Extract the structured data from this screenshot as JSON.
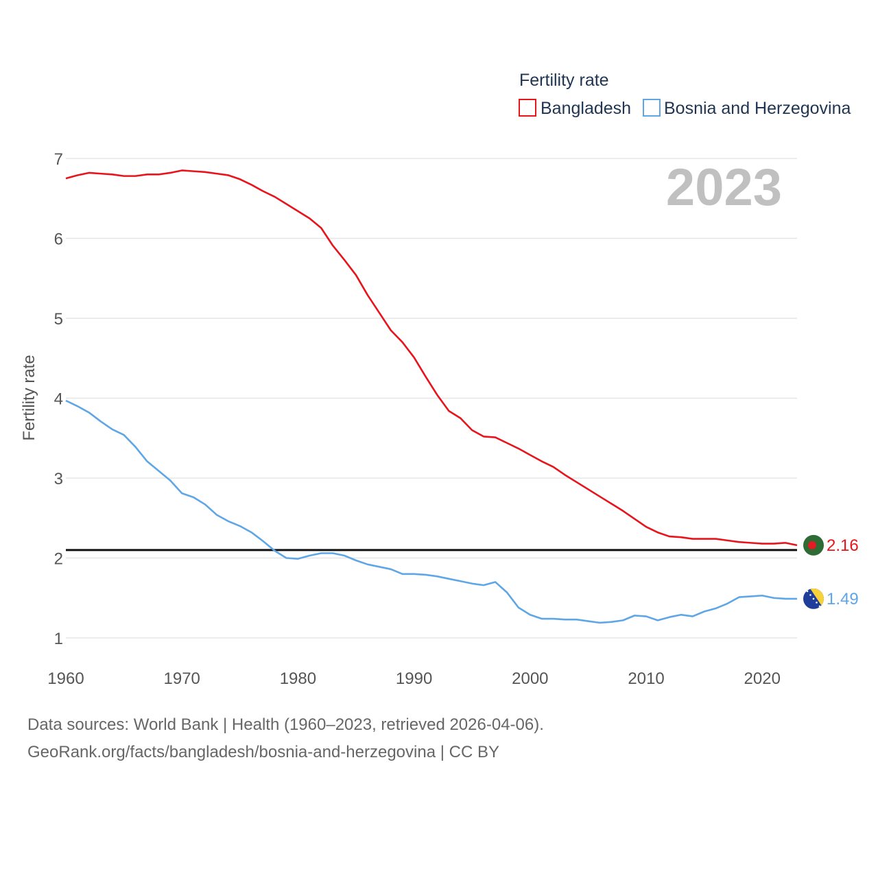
{
  "chart_data": {
    "type": "line",
    "title": "Fertility rate",
    "ylabel": "Fertility rate",
    "xlabel": "",
    "year_label": "2023",
    "xlim": [
      1960,
      2023
    ],
    "ylim": [
      0.75,
      7.3
    ],
    "x_ticks": [
      "1960",
      "1970",
      "1980",
      "1990",
      "2000",
      "2010",
      "2020"
    ],
    "y_ticks": [
      "1",
      "2",
      "3",
      "4",
      "5",
      "6",
      "7"
    ],
    "reference_line": 2.1,
    "legend": {
      "title": "Fertility rate",
      "position": "top-right"
    },
    "x": [
      1960,
      1961,
      1962,
      1963,
      1964,
      1965,
      1966,
      1967,
      1968,
      1969,
      1970,
      1971,
      1972,
      1973,
      1974,
      1975,
      1976,
      1977,
      1978,
      1979,
      1980,
      1981,
      1982,
      1983,
      1984,
      1985,
      1986,
      1987,
      1988,
      1989,
      1990,
      1991,
      1992,
      1993,
      1994,
      1995,
      1996,
      1997,
      1998,
      1999,
      2000,
      2001,
      2002,
      2003,
      2004,
      2005,
      2006,
      2007,
      2008,
      2009,
      2010,
      2011,
      2012,
      2013,
      2014,
      2015,
      2016,
      2017,
      2018,
      2019,
      2020,
      2021,
      2022,
      2023
    ],
    "series": [
      {
        "name": "Bangladesh",
        "color": "#e8141c",
        "end_label": "2.16",
        "flag_colors": [
          "#2f6b35",
          "#e31b23"
        ],
        "values": [
          6.75,
          6.79,
          6.82,
          6.81,
          6.8,
          6.78,
          6.78,
          6.8,
          6.8,
          6.82,
          6.85,
          6.84,
          6.83,
          6.81,
          6.79,
          6.74,
          6.67,
          6.59,
          6.52,
          6.43,
          6.34,
          6.25,
          6.13,
          5.91,
          5.73,
          5.54,
          5.29,
          5.07,
          4.85,
          4.7,
          4.51,
          4.27,
          4.04,
          3.84,
          3.75,
          3.6,
          3.52,
          3.51,
          3.44,
          3.37,
          3.29,
          3.21,
          3.14,
          3.04,
          2.95,
          2.86,
          2.77,
          2.68,
          2.59,
          2.49,
          2.39,
          2.32,
          2.27,
          2.26,
          2.24,
          2.24,
          2.24,
          2.22,
          2.2,
          2.19,
          2.18,
          2.18,
          2.19,
          2.16
        ]
      },
      {
        "name": "Bosnia and Herzegovina",
        "color": "#5ea6e6",
        "end_label": "1.49",
        "flag_colors": [
          "#1f3e99",
          "#f7d23b"
        ],
        "values": [
          3.97,
          3.9,
          3.82,
          3.71,
          3.61,
          3.54,
          3.39,
          3.21,
          3.09,
          2.97,
          2.81,
          2.76,
          2.67,
          2.54,
          2.46,
          2.4,
          2.32,
          2.21,
          2.09,
          2.0,
          1.99,
          2.03,
          2.06,
          2.06,
          2.03,
          1.97,
          1.92,
          1.89,
          1.86,
          1.8,
          1.8,
          1.79,
          1.77,
          1.74,
          1.71,
          1.68,
          1.66,
          1.7,
          1.57,
          1.38,
          1.29,
          1.24,
          1.24,
          1.23,
          1.23,
          1.21,
          1.19,
          1.2,
          1.22,
          1.28,
          1.27,
          1.22,
          1.26,
          1.29,
          1.27,
          1.33,
          1.37,
          1.43,
          1.51,
          1.52,
          1.53,
          1.5,
          1.49,
          1.49
        ]
      }
    ]
  },
  "footer": {
    "line1": "Data sources: World Bank | Health (1960–2023, retrieved 2026-04-06).",
    "line2": "GeoRank.org/facts/bangladesh/bosnia-and-herzegovina | CC BY"
  }
}
